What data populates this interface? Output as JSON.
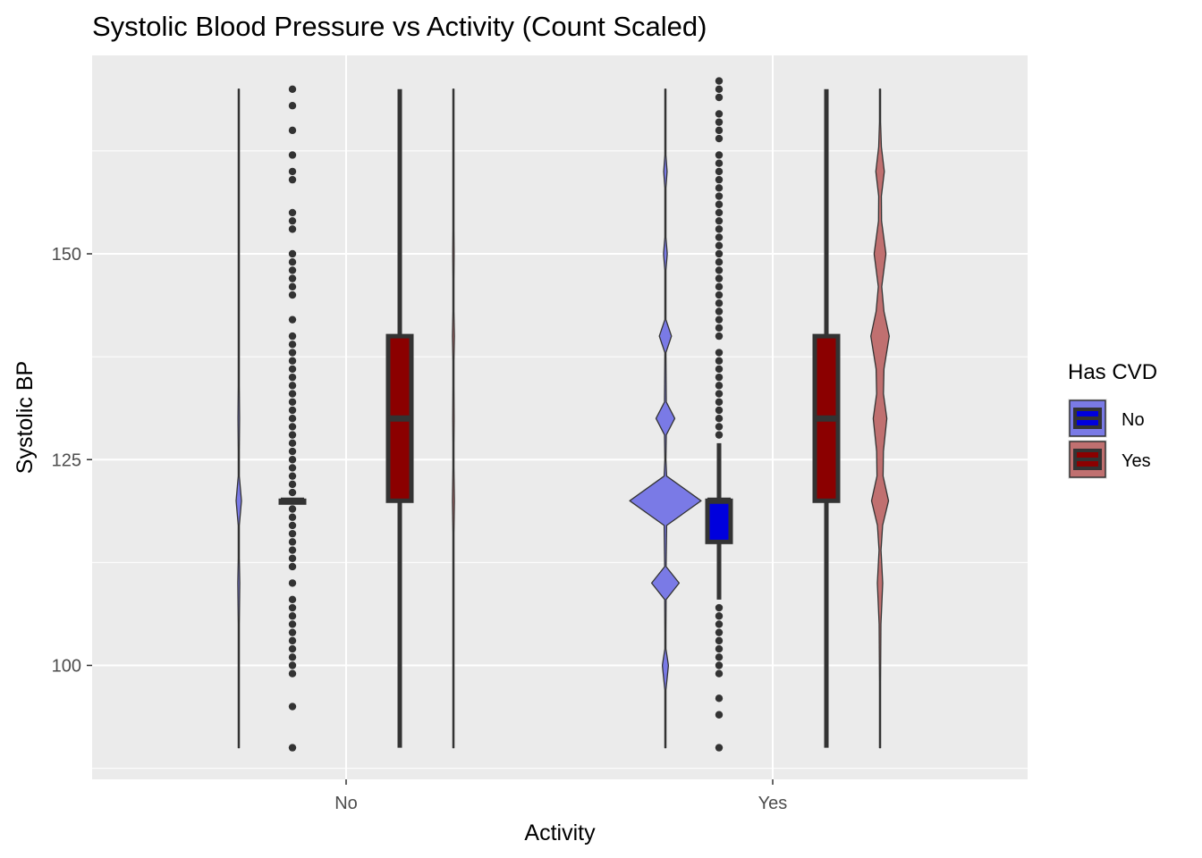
{
  "chart_data": {
    "type": "violin",
    "title": "Systolic Blood Pressure vs Activity (Count Scaled)",
    "xlabel": "Activity",
    "ylabel": "Systolic BP",
    "categories": [
      "No",
      "Yes"
    ],
    "y_ticks": [
      100,
      125,
      150
    ],
    "ylim": [
      88,
      172
    ],
    "grid": true,
    "legend": {
      "title": "Has CVD",
      "position": "right",
      "entries": [
        {
          "label": "No",
          "fill": "#0000dd",
          "violin_fill": "#7a7ae6"
        },
        {
          "label": "Yes",
          "fill": "#8b0000",
          "violin_fill": "#c07070"
        }
      ]
    },
    "colors": {
      "panel": "#ebebeb",
      "grid": "#ffffff",
      "outline": "#333333",
      "box_no": "#0000dd",
      "box_yes": "#8b0000",
      "violin_no": "#7a7ae6",
      "violin_yes": "#c07070"
    },
    "series": [
      {
        "activity": "No",
        "cvd": "No",
        "violin": [
          [
            90,
            0.1
          ],
          [
            98,
            0.1
          ],
          [
            105,
            0.2
          ],
          [
            110,
            1.2
          ],
          [
            113,
            0.2
          ],
          [
            117,
            0.6
          ],
          [
            120,
            3.2
          ],
          [
            123,
            0.6
          ],
          [
            126,
            0.2
          ],
          [
            130,
            1.0
          ],
          [
            134,
            0.2
          ],
          [
            143,
            0.1
          ],
          [
            170,
            0.1
          ]
        ],
        "box": {
          "q1": 120,
          "median": 120,
          "q3": 120,
          "whisker_low": 120,
          "whisker_high": 120
        },
        "outliers": [
          90,
          95,
          99,
          100,
          101,
          102,
          103,
          104,
          105,
          106,
          107,
          108,
          110,
          112,
          113,
          114,
          115,
          116,
          117,
          118,
          119,
          121,
          122,
          123,
          124,
          125,
          126,
          127,
          128,
          129,
          130,
          131,
          132,
          133,
          134,
          135,
          136,
          137,
          138,
          139,
          140,
          142,
          145,
          146,
          147,
          148,
          149,
          150,
          153,
          154,
          155,
          159,
          160,
          162,
          165,
          168,
          170
        ]
      },
      {
        "activity": "No",
        "cvd": "Yes",
        "violin": [
          [
            90,
            0.1
          ],
          [
            98,
            0.1
          ],
          [
            112,
            0.1
          ],
          [
            116,
            0.4
          ],
          [
            120,
            1.2
          ],
          [
            124,
            0.4
          ],
          [
            127,
            0.1
          ],
          [
            130,
            0.8
          ],
          [
            134,
            0.1
          ],
          [
            137,
            0.2
          ],
          [
            140,
            1.2
          ],
          [
            143,
            0.2
          ],
          [
            147,
            0.1
          ],
          [
            150,
            0.8
          ],
          [
            153,
            0.1
          ],
          [
            170,
            0.1
          ]
        ],
        "box": {
          "q1": 120,
          "median": 130,
          "q3": 140,
          "whisker_low": 90,
          "whisker_high": 170
        },
        "outliers": []
      },
      {
        "activity": "Yes",
        "cvd": "No",
        "violin": [
          [
            90,
            0.15
          ],
          [
            97,
            0.3
          ],
          [
            100,
            3.6
          ],
          [
            102,
            0.3
          ],
          [
            104,
            0.3
          ],
          [
            108,
            0.8
          ],
          [
            110,
            16.2
          ],
          [
            112,
            0.8
          ],
          [
            117,
            1.5
          ],
          [
            120,
            42.0
          ],
          [
            123,
            1.5
          ],
          [
            125,
            0.5
          ],
          [
            128,
            1.0
          ],
          [
            130,
            11.0
          ],
          [
            132,
            1.0
          ],
          [
            138,
            0.5
          ],
          [
            140,
            7.2
          ],
          [
            142,
            0.5
          ],
          [
            148,
            0.2
          ],
          [
            150,
            2.2
          ],
          [
            152,
            0.2
          ],
          [
            158,
            0.2
          ],
          [
            160,
            2.0
          ],
          [
            162,
            0.2
          ],
          [
            170,
            0.2
          ]
        ],
        "box": {
          "q1": 115,
          "median": 120,
          "q3": 120,
          "whisker_low": 108,
          "whisker_high": 127
        },
        "outliers": [
          90,
          94,
          96,
          99,
          100,
          101,
          102,
          103,
          104,
          105,
          106,
          107,
          128,
          129,
          130,
          131,
          132,
          133,
          134,
          135,
          136,
          137,
          138,
          140,
          141,
          142,
          143,
          144,
          145,
          146,
          147,
          148,
          149,
          150,
          151,
          152,
          153,
          154,
          155,
          156,
          157,
          158,
          159,
          160,
          161,
          162,
          164,
          165,
          166,
          167,
          169,
          170,
          171
        ]
      },
      {
        "activity": "Yes",
        "cvd": "Yes",
        "violin": [
          [
            90,
            0.25
          ],
          [
            98,
            0.4
          ],
          [
            105,
            1.0
          ],
          [
            110,
            3.2
          ],
          [
            114,
            1.2
          ],
          [
            117,
            3.0
          ],
          [
            120,
            10.0
          ],
          [
            123,
            3.6
          ],
          [
            126,
            4.0
          ],
          [
            130,
            8.0
          ],
          [
            133,
            4.0
          ],
          [
            136,
            4.6
          ],
          [
            140,
            10.8
          ],
          [
            143,
            4.6
          ],
          [
            146,
            2.0
          ],
          [
            150,
            7.0
          ],
          [
            154,
            1.8
          ],
          [
            157,
            1.6
          ],
          [
            160,
            5.0
          ],
          [
            163,
            1.6
          ],
          [
            166,
            0.4
          ],
          [
            170,
            0.3
          ]
        ],
        "box": {
          "q1": 120,
          "median": 130,
          "q3": 140,
          "whisker_low": 90,
          "whisker_high": 170
        },
        "outliers": []
      }
    ]
  }
}
